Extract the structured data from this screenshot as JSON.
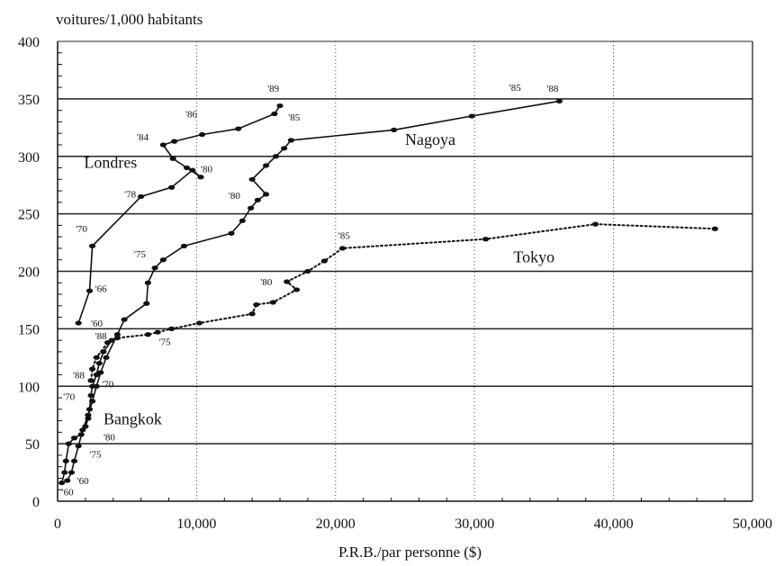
{
  "chart_data": {
    "type": "line",
    "ylabel": "voitures/1,000 habitants",
    "xlabel": "P.R.B./par personne ($)",
    "xlim": [
      0,
      50000
    ],
    "ylim": [
      0,
      400
    ],
    "x_ticks": [
      0,
      10000,
      20000,
      30000,
      40000,
      50000
    ],
    "x_tick_labels": [
      "0",
      "10,000",
      "20,000",
      "30,000",
      "40,000",
      "50,000"
    ],
    "y_ticks": [
      0,
      50,
      100,
      150,
      200,
      250,
      300,
      350,
      400
    ],
    "y_tick_labels": [
      "0",
      "50",
      "100",
      "150",
      "200",
      "250",
      "300",
      "350",
      "400"
    ],
    "grid": true,
    "series": [
      {
        "name": "Londres",
        "style": "solid",
        "points": [
          [
            1500,
            155
          ],
          [
            2300,
            183
          ],
          [
            2500,
            222
          ],
          [
            6000,
            265
          ],
          [
            8200,
            273
          ],
          [
            9700,
            288
          ],
          [
            10300,
            282
          ],
          [
            9300,
            290
          ],
          [
            8300,
            298
          ],
          [
            7600,
            310
          ],
          [
            8400,
            313
          ],
          [
            10400,
            319
          ],
          [
            13000,
            324
          ],
          [
            15600,
            337
          ],
          [
            16000,
            344
          ]
        ]
      },
      {
        "name": "Nagoya",
        "style": "solid",
        "points": [
          [
            700,
            18
          ],
          [
            1000,
            25
          ],
          [
            1200,
            35
          ],
          [
            1500,
            48
          ],
          [
            1800,
            62
          ],
          [
            2200,
            75
          ],
          [
            2500,
            87
          ],
          [
            2800,
            100
          ],
          [
            3100,
            112
          ],
          [
            3500,
            125
          ],
          [
            4300,
            145
          ],
          [
            4800,
            158
          ],
          [
            6400,
            172
          ],
          [
            6500,
            190
          ],
          [
            7000,
            203
          ],
          [
            7600,
            210
          ],
          [
            9100,
            222
          ],
          [
            12500,
            233
          ],
          [
            13300,
            244
          ],
          [
            13900,
            255
          ],
          [
            14400,
            262
          ],
          [
            15000,
            267
          ],
          [
            14000,
            280
          ],
          [
            15000,
            292
          ],
          [
            15700,
            300
          ],
          [
            16300,
            307
          ],
          [
            16800,
            314
          ],
          [
            24200,
            323
          ],
          [
            29800,
            335
          ],
          [
            36100,
            348
          ]
        ]
      },
      {
        "name": "Tokyo",
        "style": "dotted",
        "points": [
          [
            2400,
            105
          ],
          [
            2500,
            115
          ],
          [
            2800,
            125
          ],
          [
            3600,
            138
          ],
          [
            4300,
            142
          ],
          [
            6500,
            145
          ],
          [
            7200,
            147
          ],
          [
            8200,
            150
          ],
          [
            10200,
            155
          ],
          [
            14000,
            163
          ],
          [
            14300,
            171
          ],
          [
            15500,
            173
          ],
          [
            17200,
            184
          ],
          [
            16500,
            191
          ],
          [
            18000,
            200
          ],
          [
            19200,
            209
          ],
          [
            20500,
            220
          ],
          [
            30800,
            228
          ],
          [
            38700,
            241
          ],
          [
            47300,
            237
          ]
        ]
      },
      {
        "name": "Bangkok",
        "style": "solid",
        "points": [
          [
            300,
            16
          ],
          [
            500,
            25
          ],
          [
            600,
            35
          ],
          [
            800,
            50
          ],
          [
            1200,
            55
          ],
          [
            1700,
            58
          ],
          [
            2000,
            65
          ],
          [
            2200,
            72
          ],
          [
            2300,
            80
          ],
          [
            2400,
            92
          ],
          [
            2500,
            100
          ],
          [
            2800,
            110
          ],
          [
            3000,
            120
          ],
          [
            3300,
            130
          ],
          [
            3900,
            140
          ]
        ]
      }
    ],
    "series_labels": [
      "Londres",
      "Nagoya",
      "Tokyo",
      "Bangkok"
    ],
    "annotations": [
      "'89",
      "'88",
      "'86",
      "'85",
      "'84",
      "'80",
      "'78",
      "'70",
      "'66",
      "'60",
      "'80",
      "'75",
      "'85",
      "'80",
      "'75",
      "'88",
      "'88",
      "'85",
      "'70",
      "'70",
      "'80",
      "'75",
      "'60",
      "'60"
    ]
  }
}
